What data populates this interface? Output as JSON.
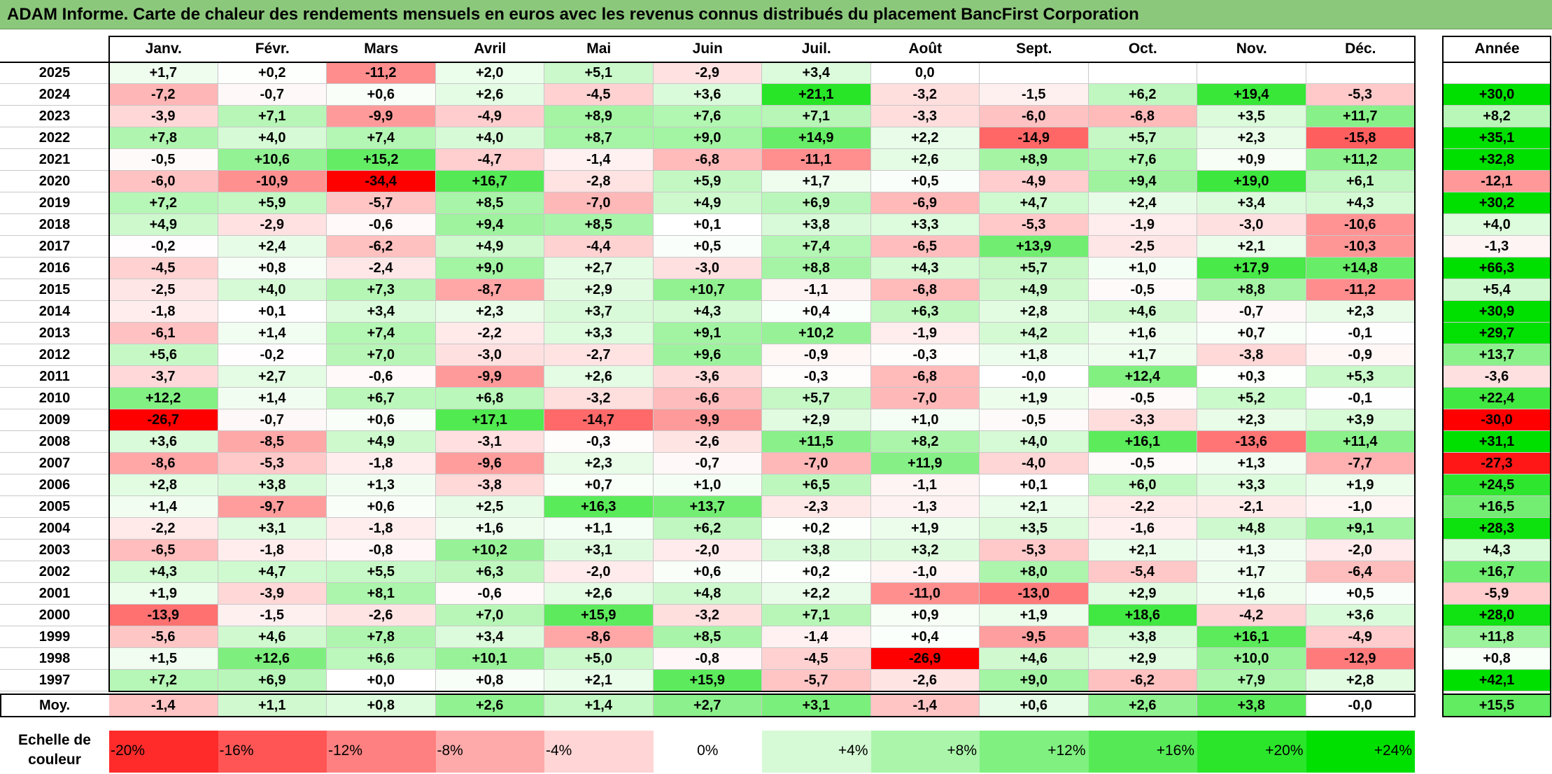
{
  "title": "ADAM Informe. Carte de chaleur des rendements mensuels en euros avec les revenus connus distribués du placement BancFirst Corporation",
  "months": [
    "Janv.",
    "Févr.",
    "Mars",
    "Avril",
    "Mai",
    "Juin",
    "Juil.",
    "Août",
    "Sept.",
    "Oct.",
    "Nov.",
    "Déc."
  ],
  "year_header": "Année",
  "avg_label": "Moy.",
  "scale_label_line1": "Echelle de",
  "scale_label_line2": "couleur",
  "chart_data": {
    "type": "heatmap",
    "title": "ADAM Informe. Carte de chaleur des rendements mensuels en euros avec les revenus connus distribués du placement BancFirst Corporation",
    "columns": [
      "Janv.",
      "Févr.",
      "Mars",
      "Avril",
      "Mai",
      "Juin",
      "Juil.",
      "Août",
      "Sept.",
      "Oct.",
      "Nov.",
      "Déc."
    ],
    "rows": [
      {
        "year": "2025",
        "values": [
          "+1,7",
          "+0,2",
          "-11,2",
          "+2,0",
          "+5,1",
          "-2,9",
          "+3,4",
          "0,0",
          "",
          "",
          "",
          ""
        ],
        "annual": ""
      },
      {
        "year": "2024",
        "values": [
          "-7,2",
          "-0,7",
          "+0,6",
          "+2,6",
          "-4,5",
          "+3,6",
          "+21,1",
          "-3,2",
          "-1,5",
          "+6,2",
          "+19,4",
          "-5,3"
        ],
        "annual": "+30,0"
      },
      {
        "year": "2023",
        "values": [
          "-3,9",
          "+7,1",
          "-9,9",
          "-4,9",
          "+8,9",
          "+7,6",
          "+7,1",
          "-3,3",
          "-6,0",
          "-6,8",
          "+3,5",
          "+11,7"
        ],
        "annual": "+8,2"
      },
      {
        "year": "2022",
        "values": [
          "+7,8",
          "+4,0",
          "+7,4",
          "+4,0",
          "+8,7",
          "+9,0",
          "+14,9",
          "+2,2",
          "-14,9",
          "+5,7",
          "+2,3",
          "-15,8"
        ],
        "annual": "+35,1"
      },
      {
        "year": "2021",
        "values": [
          "-0,5",
          "+10,6",
          "+15,2",
          "-4,7",
          "-1,4",
          "-6,8",
          "-11,1",
          "+2,6",
          "+8,9",
          "+7,6",
          "+0,9",
          "+11,2"
        ],
        "annual": "+32,8"
      },
      {
        "year": "2020",
        "values": [
          "-6,0",
          "-10,9",
          "-34,4",
          "+16,7",
          "-2,8",
          "+5,9",
          "+1,7",
          "+0,5",
          "-4,9",
          "+9,4",
          "+19,0",
          "+6,1"
        ],
        "annual": "-12,1"
      },
      {
        "year": "2019",
        "values": [
          "+7,2",
          "+5,9",
          "-5,7",
          "+8,5",
          "-7,0",
          "+4,9",
          "+6,9",
          "-6,9",
          "+4,7",
          "+2,4",
          "+3,4",
          "+4,3"
        ],
        "annual": "+30,2"
      },
      {
        "year": "2018",
        "values": [
          "+4,9",
          "-2,9",
          "-0,6",
          "+9,4",
          "+8,5",
          "+0,1",
          "+3,8",
          "+3,3",
          "-5,3",
          "-1,9",
          "-3,0",
          "-10,6"
        ],
        "annual": "+4,0"
      },
      {
        "year": "2017",
        "values": [
          "-0,2",
          "+2,4",
          "-6,2",
          "+4,9",
          "-4,4",
          "+0,5",
          "+7,4",
          "-6,5",
          "+13,9",
          "-2,5",
          "+2,1",
          "-10,3"
        ],
        "annual": "-1,3"
      },
      {
        "year": "2016",
        "values": [
          "-4,5",
          "+0,8",
          "-2,4",
          "+9,0",
          "+2,7",
          "-3,0",
          "+8,8",
          "+4,3",
          "+5,7",
          "+1,0",
          "+17,9",
          "+14,8"
        ],
        "annual": "+66,3"
      },
      {
        "year": "2015",
        "values": [
          "-2,5",
          "+4,0",
          "+7,3",
          "-8,7",
          "+2,9",
          "+10,7",
          "-1,1",
          "-6,8",
          "+4,9",
          "-0,5",
          "+8,8",
          "-11,2"
        ],
        "annual": "+5,4"
      },
      {
        "year": "2014",
        "values": [
          "-1,8",
          "+0,1",
          "+3,4",
          "+2,3",
          "+3,7",
          "+4,3",
          "+0,4",
          "+6,3",
          "+2,8",
          "+4,6",
          "-0,7",
          "+2,3"
        ],
        "annual": "+30,9"
      },
      {
        "year": "2013",
        "values": [
          "-6,1",
          "+1,4",
          "+7,4",
          "-2,2",
          "+3,3",
          "+9,1",
          "+10,2",
          "-1,9",
          "+4,2",
          "+1,6",
          "+0,7",
          "-0,1"
        ],
        "annual": "+29,7"
      },
      {
        "year": "2012",
        "values": [
          "+5,6",
          "-0,2",
          "+7,0",
          "-3,0",
          "-2,7",
          "+9,6",
          "-0,9",
          "-0,3",
          "+1,8",
          "+1,7",
          "-3,8",
          "-0,9"
        ],
        "annual": "+13,7"
      },
      {
        "year": "2011",
        "values": [
          "-3,7",
          "+2,7",
          "-0,6",
          "-9,9",
          "+2,6",
          "-3,6",
          "-0,3",
          "-6,8",
          "-0,0",
          "+12,4",
          "+0,3",
          "+5,3"
        ],
        "annual": "-3,6"
      },
      {
        "year": "2010",
        "values": [
          "+12,2",
          "+1,4",
          "+6,7",
          "+6,8",
          "-3,2",
          "-6,6",
          "+5,7",
          "-7,0",
          "+1,9",
          "-0,5",
          "+5,2",
          "-0,1"
        ],
        "annual": "+22,4"
      },
      {
        "year": "2009",
        "values": [
          "-26,7",
          "-0,7",
          "+0,6",
          "+17,1",
          "-14,7",
          "-9,9",
          "+2,9",
          "+1,0",
          "-0,5",
          "-3,3",
          "+2,3",
          "+3,9"
        ],
        "annual": "-30,0"
      },
      {
        "year": "2008",
        "values": [
          "+3,6",
          "-8,5",
          "+4,9",
          "-3,1",
          "-0,3",
          "-2,6",
          "+11,5",
          "+8,2",
          "+4,0",
          "+16,1",
          "-13,6",
          "+11,4"
        ],
        "annual": "+31,1"
      },
      {
        "year": "2007",
        "values": [
          "-8,6",
          "-5,3",
          "-1,8",
          "-9,6",
          "+2,3",
          "-0,7",
          "-7,0",
          "+11,9",
          "-4,0",
          "-0,5",
          "+1,3",
          "-7,7"
        ],
        "annual": "-27,3"
      },
      {
        "year": "2006",
        "values": [
          "+2,8",
          "+3,8",
          "+1,3",
          "-3,8",
          "+0,7",
          "+1,0",
          "+6,5",
          "-1,1",
          "+0,1",
          "+6,0",
          "+3,3",
          "+1,9"
        ],
        "annual": "+24,5"
      },
      {
        "year": "2005",
        "values": [
          "+1,4",
          "-9,7",
          "+0,6",
          "+2,5",
          "+16,3",
          "+13,7",
          "-2,3",
          "-1,3",
          "+2,1",
          "-2,2",
          "-2,1",
          "-1,0"
        ],
        "annual": "+16,5"
      },
      {
        "year": "2004",
        "values": [
          "-2,2",
          "+3,1",
          "-1,8",
          "+1,6",
          "+1,1",
          "+6,2",
          "+0,2",
          "+1,9",
          "+3,5",
          "-1,6",
          "+4,8",
          "+9,1"
        ],
        "annual": "+28,3"
      },
      {
        "year": "2003",
        "values": [
          "-6,5",
          "-1,8",
          "-0,8",
          "+10,2",
          "+3,1",
          "-2,0",
          "+3,8",
          "+3,2",
          "-5,3",
          "+2,1",
          "+1,3",
          "-2,0"
        ],
        "annual": "+4,3"
      },
      {
        "year": "2002",
        "values": [
          "+4,3",
          "+4,7",
          "+5,5",
          "+6,3",
          "-2,0",
          "+0,6",
          "+0,2",
          "-1,0",
          "+8,0",
          "-5,4",
          "+1,7",
          "-6,4"
        ],
        "annual": "+16,7"
      },
      {
        "year": "2001",
        "values": [
          "+1,9",
          "-3,9",
          "+8,1",
          "-0,6",
          "+2,6",
          "+4,8",
          "+2,2",
          "-11,0",
          "-13,0",
          "+2,9",
          "+1,6",
          "+0,5"
        ],
        "annual": "-5,9"
      },
      {
        "year": "2000",
        "values": [
          "-13,9",
          "-1,5",
          "-2,6",
          "+7,0",
          "+15,9",
          "-3,2",
          "+7,1",
          "+0,9",
          "+1,9",
          "+18,6",
          "-4,2",
          "+3,6"
        ],
        "annual": "+28,0"
      },
      {
        "year": "1999",
        "values": [
          "-5,6",
          "+4,6",
          "+7,8",
          "+3,4",
          "-8,6",
          "+8,5",
          "-1,4",
          "+0,4",
          "-9,5",
          "+3,8",
          "+16,1",
          "-4,9"
        ],
        "annual": "+11,8"
      },
      {
        "year": "1998",
        "values": [
          "+1,5",
          "+12,6",
          "+6,6",
          "+10,1",
          "+5,0",
          "-0,8",
          "-4,5",
          "-26,9",
          "+4,6",
          "+2,9",
          "+10,0",
          "-12,9"
        ],
        "annual": "+0,8"
      },
      {
        "year": "1997",
        "values": [
          "+7,2",
          "+6,9",
          "+0,0",
          "+0,8",
          "+2,1",
          "+15,9",
          "-5,7",
          "-2,6",
          "+9,0",
          "-6,2",
          "+7,9",
          "+2,8"
        ],
        "annual": "+42,1"
      }
    ],
    "average": {
      "label": "Moy.",
      "values": [
        "-1,4",
        "+1,1",
        "+0,8",
        "+2,6",
        "+1,4",
        "+2,7",
        "+3,1",
        "-1,4",
        "+0,6",
        "+2,6",
        "+3,8",
        "-0,0"
      ],
      "annual": "+15,5"
    },
    "color_scale": [
      "-20%",
      "-16%",
      "-12%",
      "-8%",
      "-4%",
      "0%",
      "+4%",
      "+8%",
      "+12%",
      "+16%",
      "+20%",
      "+24%"
    ],
    "colors": {
      "negative": "#ff0000",
      "zero": "#ffffff",
      "positive": "#00e000"
    }
  }
}
